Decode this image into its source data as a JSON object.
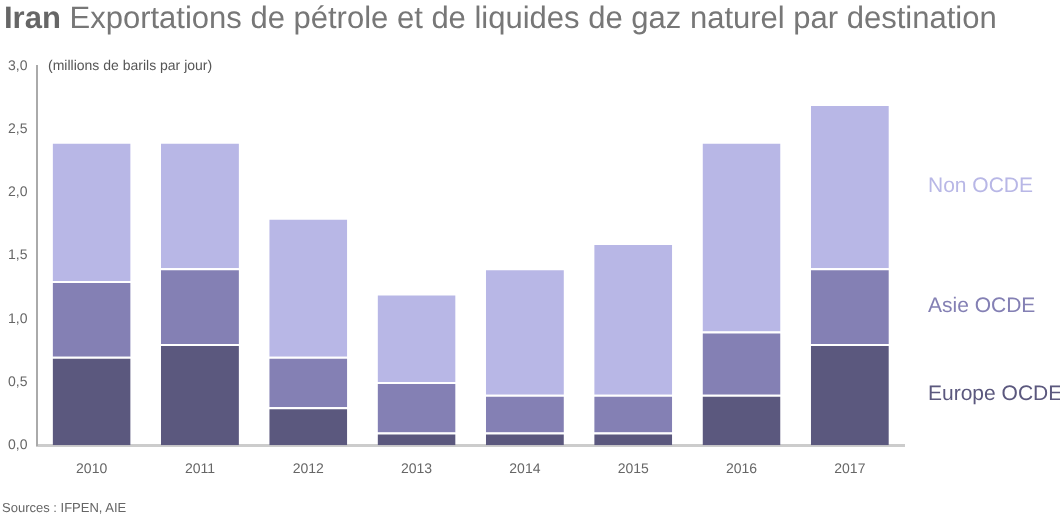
{
  "chart_data": {
    "type": "bar",
    "stacked": true,
    "title": "Iran Exportations de pétrole et de liquides de gaz naturel par destination",
    "ylabel": "(millions de barils par jour)",
    "categories": [
      "2010",
      "2011",
      "2012",
      "2013",
      "2014",
      "2015",
      "2016",
      "2017"
    ],
    "series": [
      {
        "name": "Europe OCDE",
        "color": "#5b587e",
        "values": [
          0.7,
          0.8,
          0.3,
          0.1,
          0.1,
          0.1,
          0.4,
          0.8
        ]
      },
      {
        "name": "Asie OCDE",
        "color": "#8480b4",
        "values": [
          0.6,
          0.6,
          0.4,
          0.4,
          0.3,
          0.3,
          0.5,
          0.6
        ]
      },
      {
        "name": "Non OCDE",
        "color": "#b8b7e6",
        "values": [
          1.1,
          1.0,
          1.1,
          0.7,
          1.0,
          1.2,
          1.5,
          1.3
        ]
      }
    ],
    "ylim": [
      0,
      3
    ],
    "yticks": [
      {
        "value": 0,
        "label": "0,0"
      },
      {
        "value": 0.5,
        "label": "0,5"
      },
      {
        "value": 1,
        "label": "1,0"
      },
      {
        "value": 1.5,
        "label": "1,5"
      },
      {
        "value": 2,
        "label": "2,0"
      },
      {
        "value": 2.5,
        "label": "2,5"
      },
      {
        "value": 3,
        "label": "3,0"
      }
    ],
    "grid": false,
    "legend": false,
    "annotations": [
      "Sources : IFPEN, AIE"
    ]
  }
}
